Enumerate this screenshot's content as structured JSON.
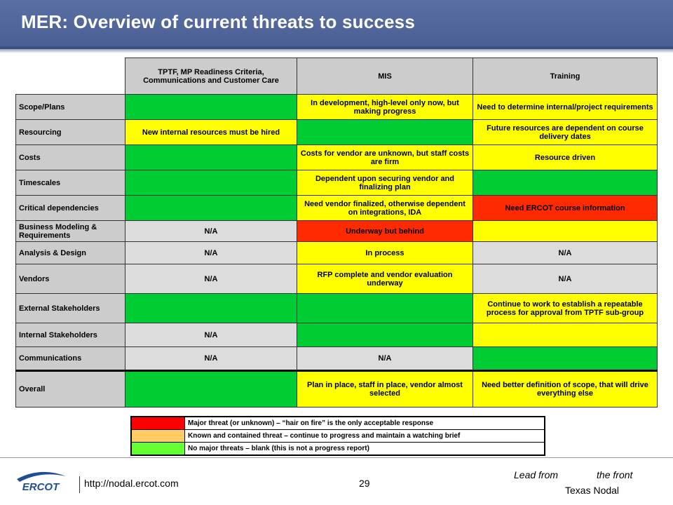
{
  "header": {
    "title": "MER: Overview of current threats to success"
  },
  "table": {
    "columns": [
      "TPTF, MP Readiness Criteria, Communications and Customer Care",
      "MIS",
      "Training"
    ],
    "rows": [
      {
        "label": "Scope/Plans",
        "cells": [
          {
            "text": "",
            "color": "green"
          },
          {
            "text": "In development, high-level only now, but making progress",
            "color": "yellow"
          },
          {
            "text": "Need to determine internal/project requirements",
            "color": "yellow"
          }
        ]
      },
      {
        "label": "Resourcing",
        "cells": [
          {
            "text": "New internal resources must be hired",
            "color": "yellow"
          },
          {
            "text": "",
            "color": "green"
          },
          {
            "text": "Future resources are dependent on course delivery dates",
            "color": "yellow"
          }
        ]
      },
      {
        "label": "Costs",
        "cells": [
          {
            "text": "",
            "color": "green"
          },
          {
            "text": "Costs for vendor are unknown, but staff costs are firm",
            "color": "yellow"
          },
          {
            "text": "Resource driven",
            "color": "yellow"
          }
        ]
      },
      {
        "label": "Timescales",
        "cells": [
          {
            "text": "",
            "color": "green"
          },
          {
            "text": "Dependent upon securing vendor and finalizing plan",
            "color": "yellow"
          },
          {
            "text": "",
            "color": "green"
          }
        ]
      },
      {
        "label": "Critical dependencies",
        "cells": [
          {
            "text": "",
            "color": "green"
          },
          {
            "text": "Need vendor finalized, otherwise dependent on integrations, IDA",
            "color": "yellow"
          },
          {
            "text": "Need ERCOT course information",
            "color": "red"
          }
        ]
      },
      {
        "label": "Business Modeling & Requirements",
        "cells": [
          {
            "text": "N/A",
            "color": "na"
          },
          {
            "text": "Underway but behind",
            "color": "red"
          },
          {
            "text": "",
            "color": "yellow"
          }
        ]
      },
      {
        "label": "Analysis & Design",
        "cells": [
          {
            "text": "N/A",
            "color": "na"
          },
          {
            "text": "In process",
            "color": "yellow"
          },
          {
            "text": "N/A",
            "color": "na"
          }
        ]
      },
      {
        "label": "Vendors",
        "cells": [
          {
            "text": "N/A",
            "color": "na"
          },
          {
            "text": "RFP complete and vendor evaluation underway",
            "color": "yellow"
          },
          {
            "text": "N/A",
            "color": "na"
          }
        ]
      },
      {
        "label": "External Stakeholders",
        "cells": [
          {
            "text": "",
            "color": "green"
          },
          {
            "text": "",
            "color": "green"
          },
          {
            "text": "Continue to work to establish a repeatable process for approval from TPTF sub-group",
            "color": "yellow"
          }
        ]
      },
      {
        "label": "Internal Stakeholders",
        "cells": [
          {
            "text": "N/A",
            "color": "na"
          },
          {
            "text": "",
            "color": "green"
          },
          {
            "text": "",
            "color": "yellow"
          }
        ]
      },
      {
        "label": "Communications",
        "cells": [
          {
            "text": "N/A",
            "color": "na"
          },
          {
            "text": "N/A",
            "color": "na"
          },
          {
            "text": "",
            "color": "green"
          }
        ]
      },
      {
        "label": "Overall",
        "cells": [
          {
            "text": "",
            "color": "green"
          },
          {
            "text": "Plan in place, staff in place, vendor almost selected",
            "color": "yellow"
          },
          {
            "text": "Need better definition of scope, that will drive everything else",
            "color": "yellow"
          }
        ]
      }
    ]
  },
  "legend": [
    {
      "color": "#ff0000",
      "text": "Major  threat (or unknown) – “hair on fire” is the only acceptable response"
    },
    {
      "color": "#ffcc66",
      "text": "Known and contained threat – continue to progress and maintain a watching brief"
    },
    {
      "color": "#66ff33",
      "text": "No major threats – blank (this is not a progress report)"
    }
  ],
  "colors": {
    "green": "#00cc33",
    "yellow": "#ffff00",
    "red": "#ff2a00",
    "na": "#dcdcdc",
    "header": "#4a5f94"
  },
  "footer": {
    "logo_text": "ERCOT",
    "url": "http://nodal.ercot.com",
    "page_number": "29",
    "tagline_left": "Lead from",
    "tagline_right": "the front",
    "subtitle": "Texas Nodal"
  }
}
